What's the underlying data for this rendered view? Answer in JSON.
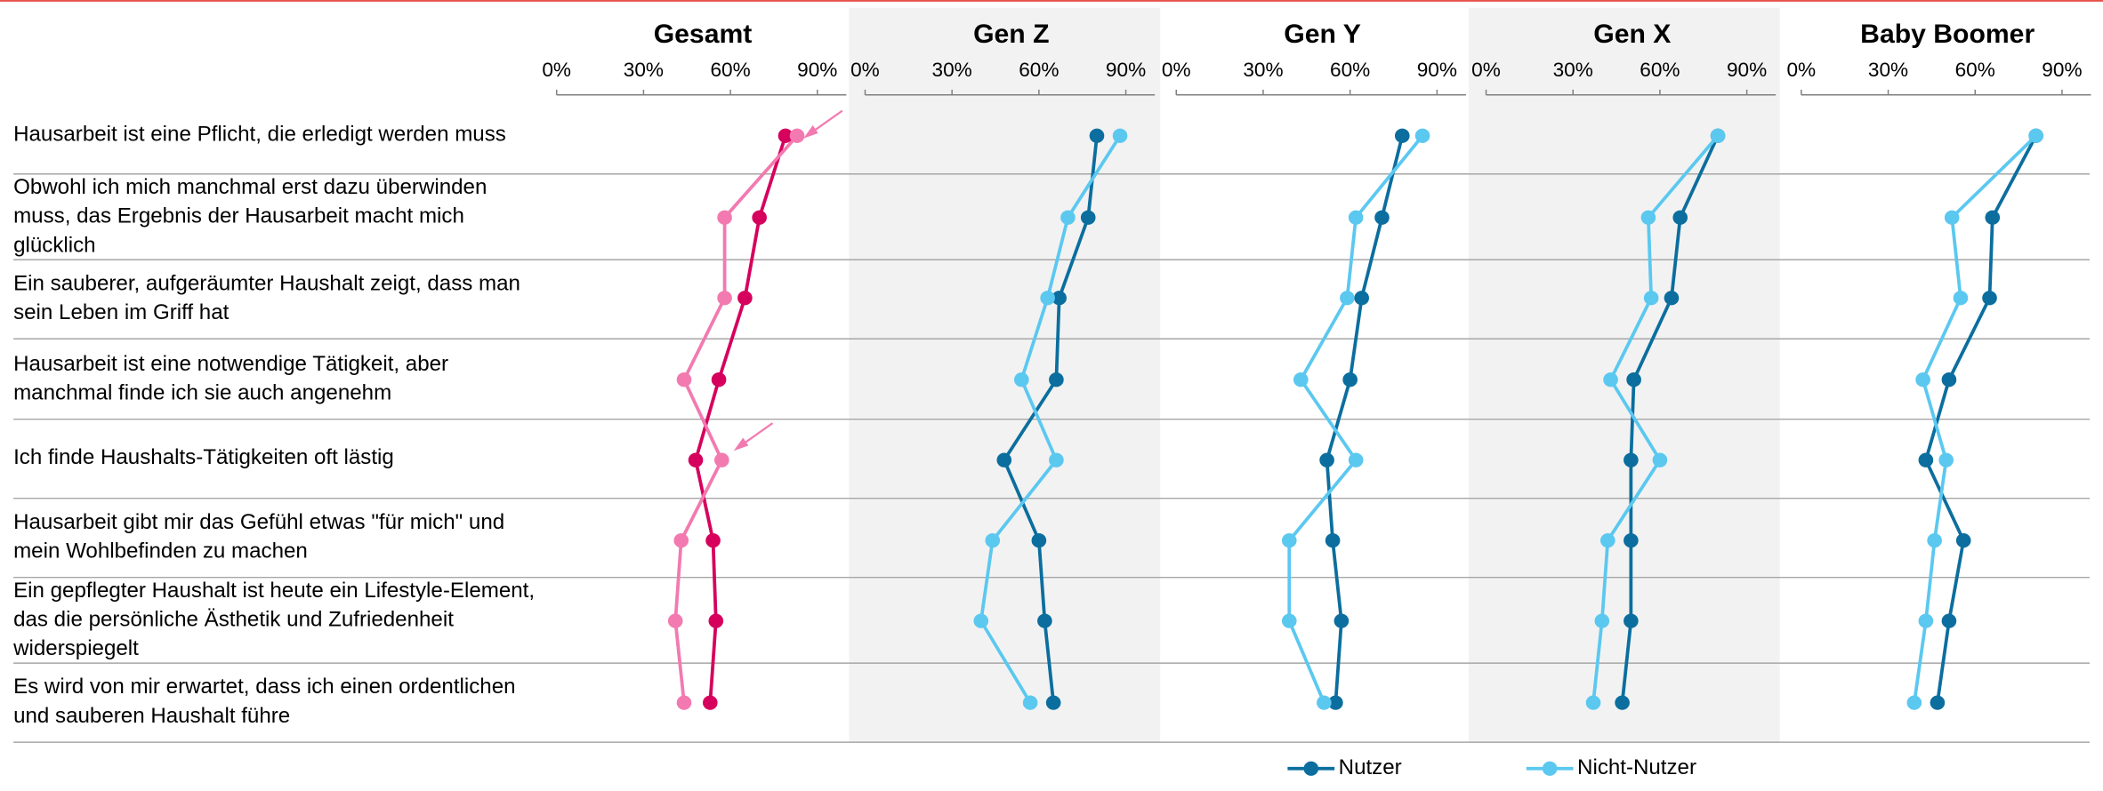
{
  "chart_data": [
    {
      "type": "dot-line",
      "title": "Gesamt",
      "categories": [
        "Hausarbeit ist eine Pflicht, die erledigt werden muss",
        "Obwohl ich mich manchmal erst dazu überwinden muss, das Ergebnis der Hausarbeit macht mich glücklich",
        "Ein sauberer, aufgeräumter Haushalt zeigt, dass man sein Leben im Griff hat",
        "Hausarbeit ist eine notwendige Tätigkeit, aber manchmal finde ich sie auch angenehm",
        "Ich finde Haushalts-Tätigkeiten oft lästig",
        "Hausarbeit gibt mir das Gefühl etwas \"für mich\" und mein Wohlbefinden zu machen",
        "Ein gepflegter Haushalt ist heute ein Lifestyle-Element, das die persönliche Ästhetik und Zufriedenheit widerspiegelt",
        "Es wird von mir erwartet, dass ich einen ordentlichen und sauberen Haushalt führe"
      ],
      "series": [
        {
          "color": "#d6005d",
          "values": [
            79,
            70,
            65,
            56,
            48,
            54,
            55,
            53
          ]
        },
        {
          "color": "#f27ab0",
          "values": [
            83,
            58,
            58,
            44,
            57,
            43,
            41,
            44
          ]
        }
      ],
      "xlim": [
        0,
        100
      ],
      "xticks": [
        {
          "value": 0,
          "label": "0%"
        },
        {
          "value": 30,
          "label": "30%"
        },
        {
          "value": 60,
          "label": "60%"
        },
        {
          "value": 90,
          "label": "90%"
        }
      ]
    },
    {
      "type": "dot-line",
      "title": "Gen Z",
      "series": [
        {
          "color": "#0b6e9e",
          "values": [
            80,
            77,
            67,
            66,
            48,
            60,
            62,
            65
          ]
        },
        {
          "color": "#5bc8f0",
          "values": [
            88,
            70,
            63,
            54,
            66,
            44,
            40,
            57
          ]
        }
      ],
      "xlim": [
        0,
        100
      ],
      "xticks": [
        {
          "value": 0,
          "label": "0%"
        },
        {
          "value": 30,
          "label": "30%"
        },
        {
          "value": 60,
          "label": "60%"
        },
        {
          "value": 90,
          "label": "90%"
        }
      ]
    },
    {
      "type": "dot-line",
      "title": "Gen Y",
      "series": [
        {
          "color": "#0b6e9e",
          "values": [
            78,
            71,
            64,
            60,
            52,
            54,
            57,
            55
          ]
        },
        {
          "color": "#5bc8f0",
          "values": [
            85,
            62,
            59,
            43,
            62,
            39,
            39,
            51
          ]
        }
      ],
      "xlim": [
        0,
        100
      ],
      "xticks": [
        {
          "value": 0,
          "label": "0%"
        },
        {
          "value": 30,
          "label": "30%"
        },
        {
          "value": 60,
          "label": "60%"
        },
        {
          "value": 90,
          "label": "90%"
        }
      ]
    },
    {
      "type": "dot-line",
      "title": "Gen X",
      "series": [
        {
          "color": "#0b6e9e",
          "values": [
            80,
            67,
            64,
            51,
            50,
            50,
            50,
            47
          ]
        },
        {
          "color": "#5bc8f0",
          "values": [
            80,
            56,
            57,
            43,
            60,
            42,
            40,
            37
          ]
        }
      ],
      "xlim": [
        0,
        100
      ],
      "xticks": [
        {
          "value": 0,
          "label": "0%"
        },
        {
          "value": 30,
          "label": "30%"
        },
        {
          "value": 60,
          "label": "60%"
        },
        {
          "value": 90,
          "label": "90%"
        }
      ]
    },
    {
      "type": "dot-line",
      "title": "Baby Boomer",
      "series": [
        {
          "color": "#0b6e9e",
          "values": [
            81,
            66,
            65,
            51,
            43,
            56,
            51,
            47
          ]
        },
        {
          "color": "#5bc8f0",
          "values": [
            81,
            52,
            55,
            42,
            50,
            46,
            43,
            39
          ]
        }
      ],
      "xlim": [
        0,
        100
      ],
      "xticks": [
        {
          "value": 0,
          "label": "0%"
        },
        {
          "value": 30,
          "label": "30%"
        },
        {
          "value": 60,
          "label": "60%"
        },
        {
          "value": 90,
          "label": "90%"
        }
      ]
    }
  ],
  "legend": [
    {
      "name": "Nutzer",
      "color": "#0b6e9e"
    },
    {
      "name": "Nicht-Nutzer",
      "color": "#5bc8f0"
    }
  ]
}
